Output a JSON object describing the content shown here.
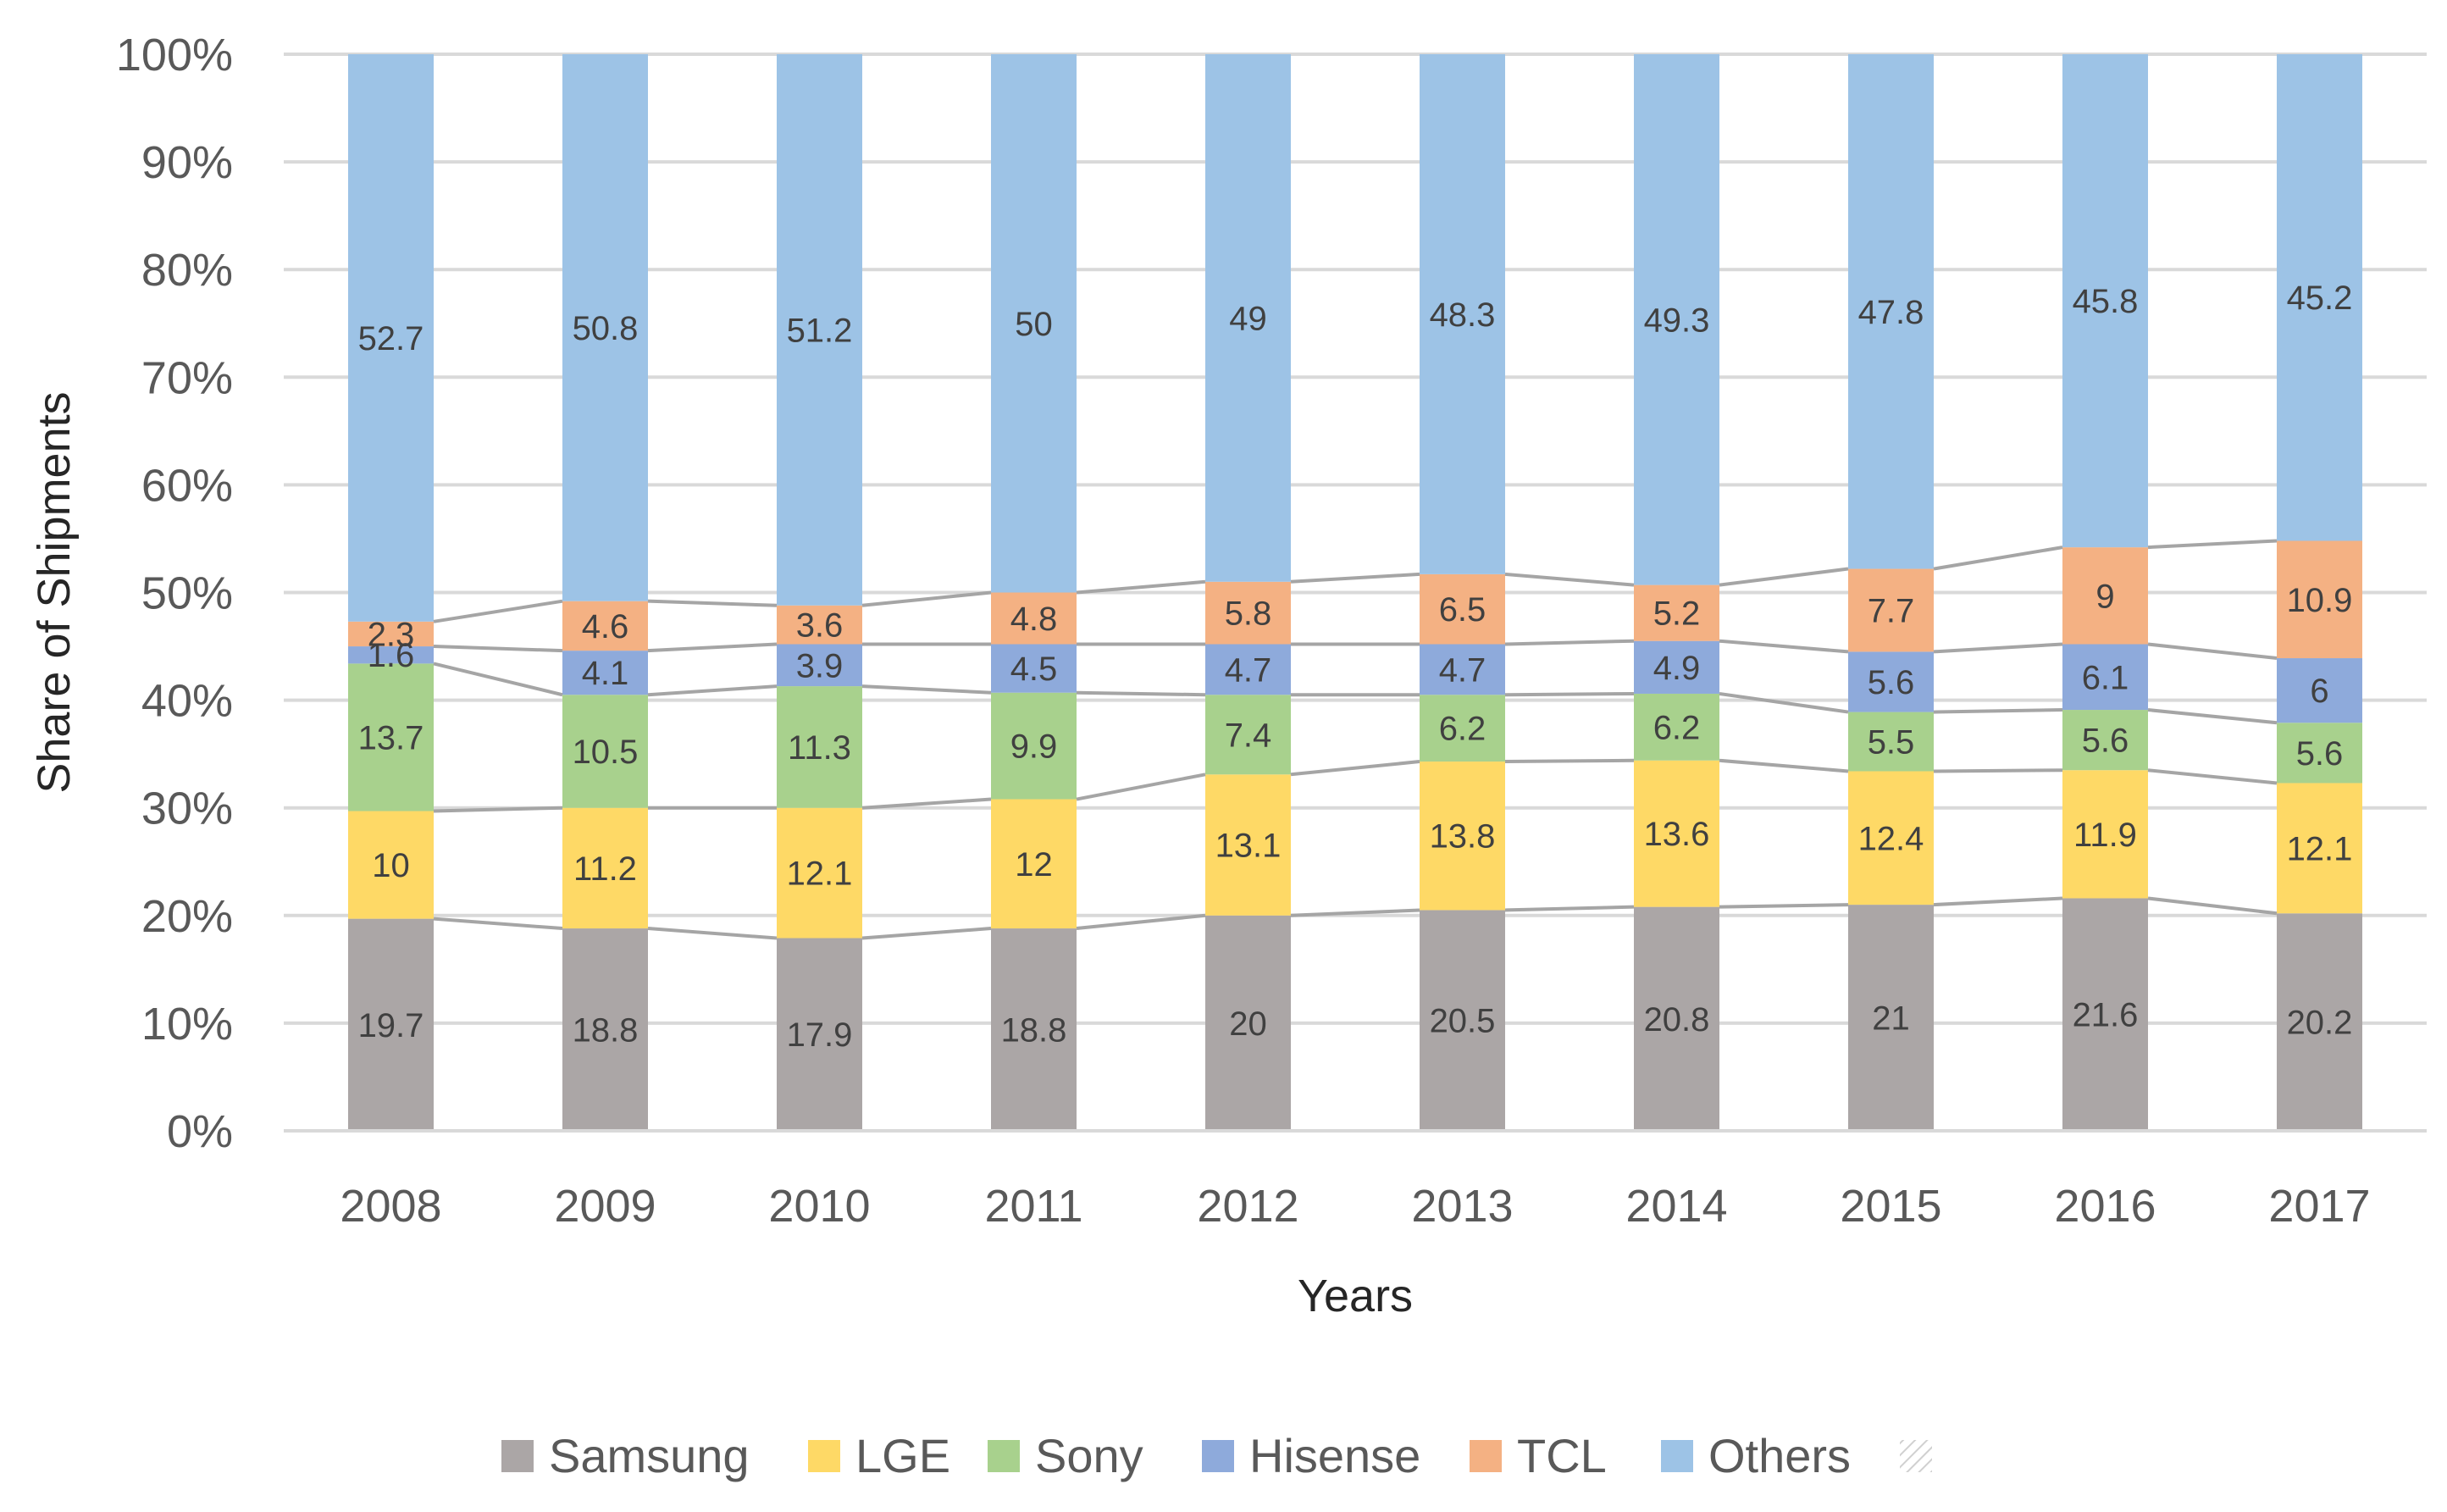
{
  "chart_data": {
    "type": "bar",
    "stacked": true,
    "percent_stacked": true,
    "title": "",
    "xlabel": "Years",
    "ylabel": "Share of Shipments",
    "ylim": [
      0,
      100
    ],
    "yticks": [
      "0%",
      "10%",
      "20%",
      "30%",
      "40%",
      "50%",
      "60%",
      "70%",
      "80%",
      "90%",
      "100%"
    ],
    "grid": true,
    "legend_position": "bottom",
    "categories": [
      "2008",
      "2009",
      "2010",
      "2011",
      "2012",
      "2013",
      "2014",
      "2015",
      "2016",
      "2017"
    ],
    "series": [
      {
        "name": "Samsung",
        "color": "#ABA6A6",
        "values": [
          19.7,
          18.8,
          17.9,
          18.8,
          20,
          20.5,
          20.8,
          21,
          21.6,
          20.2
        ]
      },
      {
        "name": "LGE",
        "color": "#FED966",
        "values": [
          10,
          11.2,
          12.1,
          12,
          13.1,
          13.8,
          13.6,
          12.4,
          11.9,
          12.1
        ]
      },
      {
        "name": "Sony",
        "color": "#A8D18D",
        "values": [
          13.7,
          10.5,
          11.3,
          9.9,
          7.4,
          6.2,
          6.2,
          5.5,
          5.6,
          5.6
        ]
      },
      {
        "name": "Hisense",
        "color": "#8EAADB",
        "values": [
          1.6,
          4.1,
          3.9,
          4.5,
          4.7,
          4.7,
          4.9,
          5.6,
          6.1,
          6
        ]
      },
      {
        "name": "TCL",
        "color": "#F4B183",
        "values": [
          2.3,
          4.6,
          3.6,
          4.8,
          5.8,
          6.5,
          5.2,
          7.7,
          9,
          10.9
        ]
      },
      {
        "name": "Others",
        "color": "#9DC3E6",
        "values": [
          52.7,
          50.8,
          51.2,
          50,
          49,
          48.3,
          49.3,
          47.8,
          45.8,
          45.2
        ]
      }
    ],
    "series_lines": true,
    "series_line_color": "#A5A5A5",
    "gridline_color": "#D9D9D9",
    "axis_line_color": "#D9D9D9"
  },
  "legend": {
    "extra_entry_swatch": "hatched-swatch-icon"
  }
}
